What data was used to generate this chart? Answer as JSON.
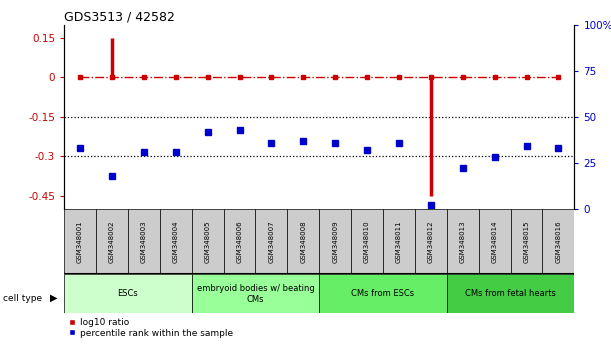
{
  "title": "GDS3513 / 42582",
  "samples": [
    "GSM348001",
    "GSM348002",
    "GSM348003",
    "GSM348004",
    "GSM348005",
    "GSM348006",
    "GSM348007",
    "GSM348008",
    "GSM348009",
    "GSM348010",
    "GSM348011",
    "GSM348012",
    "GSM348013",
    "GSM348014",
    "GSM348015",
    "GSM348016"
  ],
  "log10_ratio": [
    0.0,
    0.15,
    0.0,
    0.0,
    0.0,
    0.0,
    0.0,
    0.0,
    0.0,
    0.0,
    0.0,
    -0.45,
    0.0,
    0.0,
    0.0,
    0.0
  ],
  "percentile_rank": [
    33,
    18,
    31,
    31,
    42,
    43,
    36,
    37,
    36,
    32,
    36,
    2,
    22,
    28,
    34,
    33
  ],
  "ylim_left": [
    -0.5,
    0.2
  ],
  "ylim_right": [
    0,
    100
  ],
  "yticks_left": [
    0.15,
    0.0,
    -0.15,
    -0.3,
    -0.45
  ],
  "yticks_right": [
    100,
    75,
    50,
    25,
    0
  ],
  "hlines": [
    -0.15,
    -0.3
  ],
  "cell_types": [
    {
      "label": "ESCs",
      "start": 0,
      "end": 4,
      "color": "#ccffcc"
    },
    {
      "label": "embryoid bodies w/ beating\nCMs",
      "start": 4,
      "end": 8,
      "color": "#99ff99"
    },
    {
      "label": "CMs from ESCs",
      "start": 8,
      "end": 12,
      "color": "#66ee66"
    },
    {
      "label": "CMs from fetal hearts",
      "start": 12,
      "end": 16,
      "color": "#44cc44"
    }
  ],
  "red_color": "#cc0000",
  "blue_color": "#0000cc",
  "hline_color": "#000000",
  "bg_color": "#ffffff",
  "sample_box_color": "#cccccc",
  "legend_items": [
    {
      "label": "log10 ratio",
      "color": "#cc0000"
    },
    {
      "label": "percentile rank within the sample",
      "color": "#0000cc"
    }
  ]
}
